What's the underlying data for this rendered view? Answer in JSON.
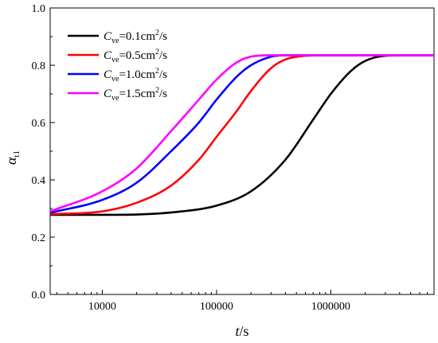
{
  "chart_data": {
    "type": "line",
    "xscale": "log",
    "xlim": [
      3500,
      8000000
    ],
    "ylim": [
      0.0,
      1.0
    ],
    "xlabel": {
      "var": "t",
      "unit": "/s"
    },
    "ylabel": {
      "var": "α",
      "sub": "t1"
    },
    "yticks": [
      {
        "value": 0.0,
        "label": "0.0"
      },
      {
        "value": 0.2,
        "label": "0.2"
      },
      {
        "value": 0.4,
        "label": "0.4"
      },
      {
        "value": 0.6,
        "label": "0.6"
      },
      {
        "value": 0.8,
        "label": "0.8"
      },
      {
        "value": 1.0,
        "label": "1.0"
      }
    ],
    "xticks": [
      {
        "value": 10000,
        "label": "10000"
      },
      {
        "value": 100000,
        "label": "100000"
      },
      {
        "value": 1000000,
        "label": "1000000"
      }
    ],
    "legend_position": "top-left",
    "series": [
      {
        "name": "Cve=0.1cm2/s",
        "label": {
          "var": "C",
          "sub": "ve",
          "eq": "=0.1cm",
          "sup": "2",
          "tail": "/s"
        },
        "color": "#000000",
        "x": [
          3500,
          10000,
          20000,
          50000,
          100000,
          200000,
          400000,
          700000,
          1000000,
          1500000,
          2000000,
          3000000,
          5000000,
          8000000
        ],
        "y": [
          0.278,
          0.278,
          0.279,
          0.29,
          0.31,
          0.36,
          0.47,
          0.61,
          0.7,
          0.78,
          0.815,
          0.833,
          0.835,
          0.835
        ]
      },
      {
        "name": "Cve=0.5cm2/s",
        "label": {
          "var": "C",
          "sub": "ve",
          "eq": "=0.5cm",
          "sup": "2",
          "tail": "/s"
        },
        "color": "#ff0000",
        "x": [
          3500,
          10000,
          20000,
          40000,
          70000,
          100000,
          150000,
          200000,
          300000,
          400000,
          600000,
          1000000,
          8000000
        ],
        "y": [
          0.28,
          0.29,
          0.32,
          0.38,
          0.47,
          0.55,
          0.64,
          0.71,
          0.79,
          0.82,
          0.833,
          0.835,
          0.835
        ]
      },
      {
        "name": "Cve=1.0cm2/s",
        "label": {
          "var": "C",
          "sub": "ve",
          "eq": "=1.0cm",
          "sup": "2",
          "tail": "/s"
        },
        "color": "#0000ff",
        "x": [
          3500,
          10000,
          20000,
          40000,
          70000,
          100000,
          150000,
          200000,
          300000,
          400000,
          600000,
          1000000,
          8000000
        ],
        "y": [
          0.285,
          0.33,
          0.39,
          0.5,
          0.6,
          0.68,
          0.76,
          0.8,
          0.83,
          0.835,
          0.835,
          0.835,
          0.835
        ]
      },
      {
        "name": "Cve=1.5cm2/s",
        "label": {
          "var": "C",
          "sub": "ve",
          "eq": "=1.5cm",
          "sup": "2",
          "tail": "/s"
        },
        "color": "#ff00ff",
        "x": [
          3500,
          10000,
          20000,
          40000,
          70000,
          100000,
          150000,
          200000,
          300000,
          400000,
          1000000,
          8000000
        ],
        "y": [
          0.29,
          0.36,
          0.44,
          0.57,
          0.68,
          0.75,
          0.81,
          0.83,
          0.835,
          0.835,
          0.835,
          0.835
        ]
      }
    ]
  }
}
